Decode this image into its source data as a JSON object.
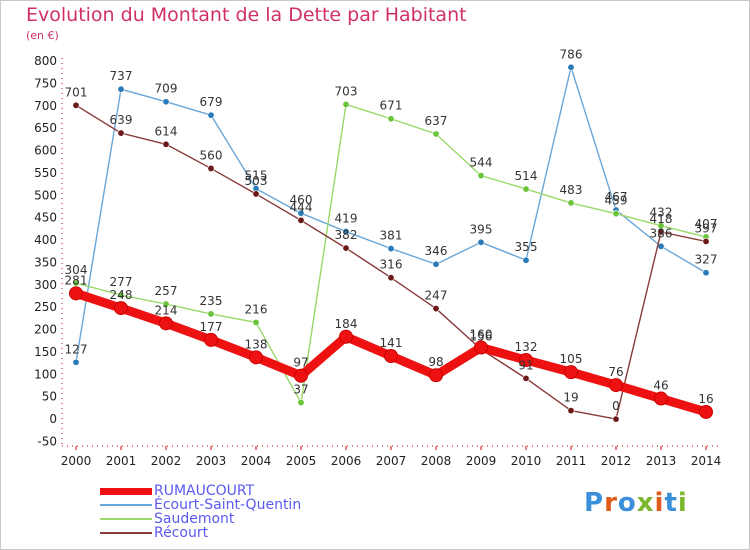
{
  "title": "Evolution du Montant de la Dette par Habitant",
  "unit": "(en €)",
  "logo": {
    "text": "Proxiti",
    "colors": [
      "#3a8fd8",
      "#e05a1a",
      "#3a8fd8",
      "#7ab82e",
      "#e05a1a",
      "#3a8fd8",
      "#7ab82e"
    ]
  },
  "chart_data": {
    "type": "line",
    "title": "Evolution du Montant de la Dette par Habitant",
    "ylabel": "(en €)",
    "xlabel": "",
    "x": [
      "2000",
      "2001",
      "2002",
      "2003",
      "2004",
      "2005",
      "2006",
      "2007",
      "2008",
      "2009",
      "2010",
      "2011",
      "2012",
      "2013",
      "2014"
    ],
    "yticks": [
      "-50",
      "0",
      "50",
      "100",
      "150",
      "200",
      "250",
      "300",
      "350",
      "400",
      "450",
      "500",
      "550",
      "600",
      "650",
      "700",
      "750",
      "800"
    ],
    "ylim": [
      -50,
      800
    ],
    "grid": false,
    "legend_position": "bottom-left",
    "series": [
      {
        "name": "RUMAUCOURT",
        "color": "#ee1111",
        "marker": "#ee1111",
        "values": [
          281,
          248,
          214,
          177,
          138,
          97,
          184,
          141,
          98,
          160,
          132,
          105,
          76,
          46,
          16
        ]
      },
      {
        "name": "Écourt-Saint-Quentin",
        "color": "#6aa6d8",
        "marker": "#2a7ab8",
        "values": [
          127,
          737,
          709,
          679,
          515,
          460,
          419,
          381,
          346,
          395,
          355,
          786,
          467,
          386,
          327
        ]
      },
      {
        "name": "Saudemont",
        "color": "#9ad86a",
        "marker": "#6ac43a",
        "values": [
          304,
          277,
          257,
          235,
          216,
          37,
          703,
          671,
          637,
          544,
          514,
          483,
          459,
          432,
          407
        ]
      },
      {
        "name": "Récourt",
        "color": "#8a3a3a",
        "marker": "#6a1818",
        "values": [
          701,
          639,
          614,
          560,
          503,
          444,
          382,
          316,
          247,
          156,
          91,
          19,
          0,
          418,
          397
        ]
      }
    ]
  }
}
